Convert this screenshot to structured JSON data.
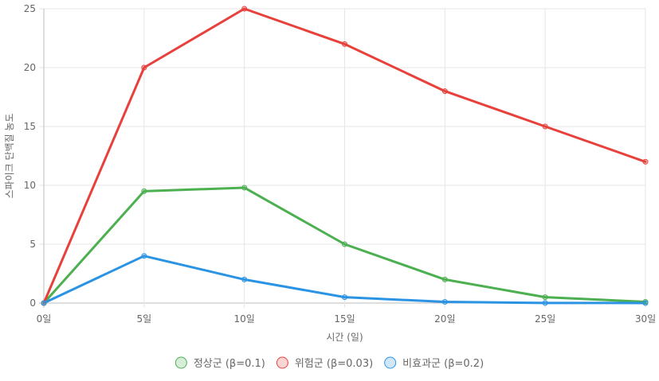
{
  "chart_data": {
    "type": "line",
    "title": "",
    "xlabel": "시간 (일)",
    "ylabel": "스파이크 단백질 농도",
    "x": [
      0,
      5,
      10,
      15,
      20,
      25,
      30
    ],
    "x_tick_labels": [
      "0일",
      "5일",
      "10일",
      "15일",
      "20일",
      "25일",
      "30일"
    ],
    "ylim": [
      0,
      25
    ],
    "y_ticks": [
      0,
      5,
      10,
      15,
      20,
      25
    ],
    "grid": true,
    "legend_position": "bottom",
    "series": [
      {
        "name": "정상군 (β=0.1)",
        "color": "#4caf50",
        "values": [
          0,
          9.5,
          9.8,
          5,
          2,
          0.5,
          0.1
        ]
      },
      {
        "name": "위험군 (β=0.03)",
        "color": "#e8413c",
        "values": [
          0,
          20,
          25,
          22,
          18,
          15,
          12
        ]
      },
      {
        "name": "비효과군 (β=0.2)",
        "color": "#2a93e4",
        "values": [
          0,
          4,
          2,
          0.5,
          0.1,
          0.01,
          0.002
        ]
      }
    ]
  }
}
